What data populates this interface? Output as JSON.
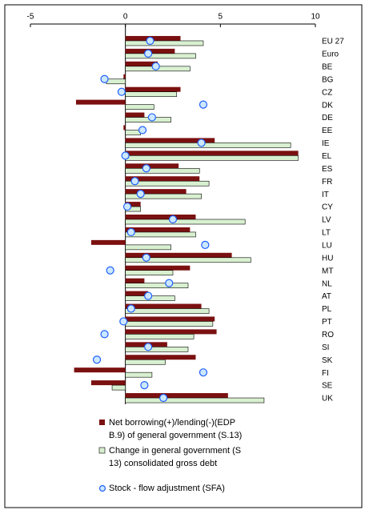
{
  "chart_data": {
    "type": "hbar-dot",
    "categories": [
      "EU 27",
      "Euro",
      "BE",
      "BG",
      "CZ",
      "DK",
      "DE",
      "EE",
      "IE",
      "EL",
      "ES",
      "FR",
      "IT",
      "CY",
      "LV",
      "LT",
      "LU",
      "HU",
      "MT",
      "NL",
      "AT",
      "PL",
      "PT",
      "RO",
      "SI",
      "SK",
      "FI",
      "SE",
      "UK"
    ],
    "series": [
      {
        "name": "Net borrowing(+)/lending(-)(EDP B.9) of general government (S.13)",
        "color": "#7b1010",
        "values": [
          2.9,
          2.6,
          1.7,
          -0.1,
          2.9,
          -2.6,
          1.0,
          -0.1,
          4.7,
          9.1,
          2.8,
          3.9,
          3.2,
          0.8,
          3.7,
          3.4,
          -1.8,
          5.6,
          3.4,
          1.0,
          1.2,
          4.0,
          4.7,
          4.8,
          2.2,
          3.7,
          -2.7,
          -1.8,
          5.4
        ]
      },
      {
        "name": "Change in general government (S.13) consolidated gross debt",
        "color": "#d8f0d0",
        "values": [
          4.1,
          3.7,
          3.4,
          -1.0,
          2.7,
          1.5,
          2.4,
          0.8,
          8.7,
          9.1,
          3.9,
          4.4,
          4.0,
          0.8,
          6.3,
          3.7,
          2.4,
          6.6,
          2.5,
          3.3,
          2.6,
          4.4,
          4.6,
          3.6,
          3.3,
          2.1,
          1.4,
          -0.7,
          7.3
        ]
      },
      {
        "name": "Stock - flow adjustment (SFA)",
        "color": "#1f5fff",
        "values": [
          1.3,
          1.2,
          1.6,
          -1.1,
          -0.2,
          4.1,
          1.4,
          0.9,
          4.0,
          0.0,
          1.1,
          0.5,
          0.8,
          0.1,
          2.5,
          0.3,
          4.2,
          1.1,
          -0.8,
          2.3,
          1.2,
          0.3,
          -0.1,
          -1.1,
          1.2,
          -1.5,
          4.1,
          1.0,
          2.0
        ]
      }
    ],
    "xlim": [
      -5,
      10
    ],
    "xticks": [
      -5,
      0,
      5,
      10
    ]
  }
}
